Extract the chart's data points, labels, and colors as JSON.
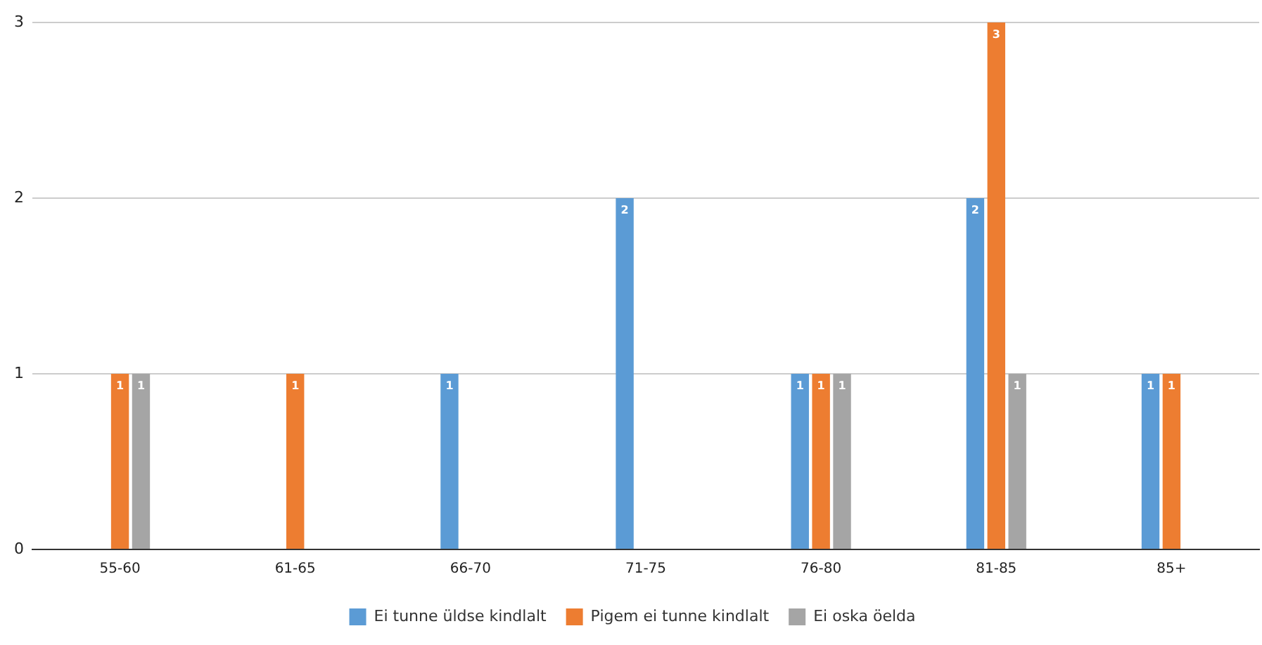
{
  "chart_data": {
    "type": "bar",
    "categories": [
      "55-60",
      "61-65",
      "66-70",
      "71-75",
      "76-80",
      "81-85",
      "85+"
    ],
    "series": [
      {
        "name": "Ei tunne üldse kindlalt",
        "color": "#5b9bd5",
        "values": [
          null,
          null,
          1,
          2,
          1,
          2,
          1
        ]
      },
      {
        "name": "Pigem ei tunne kindlalt",
        "color": "#ed7d31",
        "values": [
          1,
          1,
          null,
          null,
          1,
          3,
          1
        ]
      },
      {
        "name": "Ei oska öelda",
        "color": "#a5a5a5",
        "values": [
          1,
          null,
          null,
          null,
          1,
          1,
          null
        ]
      }
    ],
    "ylim": [
      0,
      3
    ],
    "yticks": [
      0,
      1,
      2,
      3
    ],
    "grid": "y",
    "legend": "bottom",
    "data_labels": true
  }
}
